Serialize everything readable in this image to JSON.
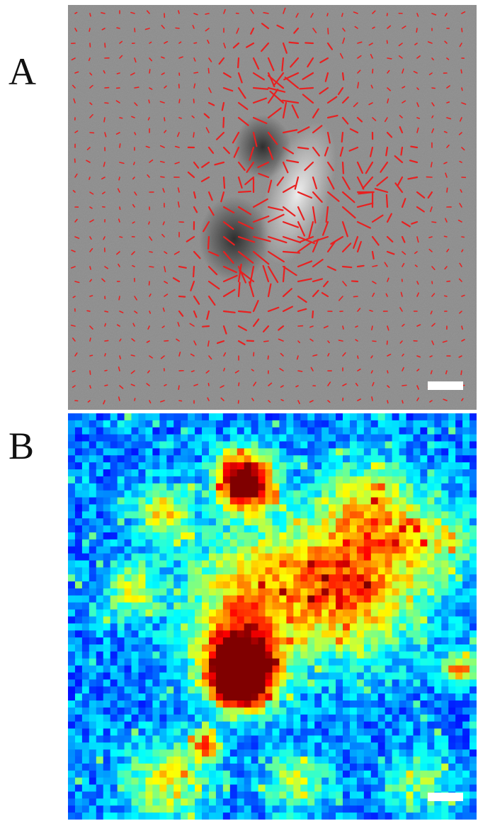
{
  "panels": [
    {
      "label": "A",
      "type": "phase-contrast image with red displacement vectors",
      "arrow_color": "#e82020"
    },
    {
      "label": "B",
      "type": "traction heatmap",
      "colormap": "jet"
    }
  ],
  "colors": {
    "arrow": "#e82020",
    "scale_bar": "#ffffff",
    "heat_low": "#0000b4",
    "heat_high": "#800000"
  }
}
